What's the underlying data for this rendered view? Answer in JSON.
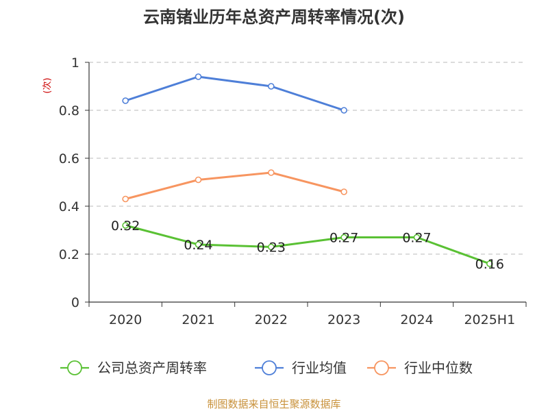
{
  "chart_data": {
    "type": "line",
    "title": "云南锗业历年总资产周转率情况(次)",
    "ylabel": "(次)",
    "categories": [
      "2020",
      "2021",
      "2022",
      "2023",
      "2024",
      "2025H1"
    ],
    "ylim": [
      0,
      1
    ],
    "yticks": [
      "0",
      "0.2",
      "0.4",
      "0.6",
      "0.8",
      "1"
    ],
    "grid": true,
    "legend_position": "bottom",
    "series": [
      {
        "name": "公司总资产周转率",
        "color": "#5ac134",
        "values": [
          0.32,
          0.24,
          0.23,
          0.27,
          0.27,
          0.16
        ],
        "labels": [
          "0.32",
          "0.24",
          "0.23",
          "0.27",
          "0.27",
          "0.16"
        ]
      },
      {
        "name": "行业均值",
        "color": "#4e7fd8",
        "values": [
          0.84,
          0.94,
          0.9,
          0.8,
          null,
          null
        ]
      },
      {
        "name": "行业中位数",
        "color": "#f79560",
        "values": [
          0.43,
          0.51,
          0.54,
          0.46,
          null,
          null
        ]
      }
    ]
  },
  "source": "制图数据来自恒生聚源数据库"
}
